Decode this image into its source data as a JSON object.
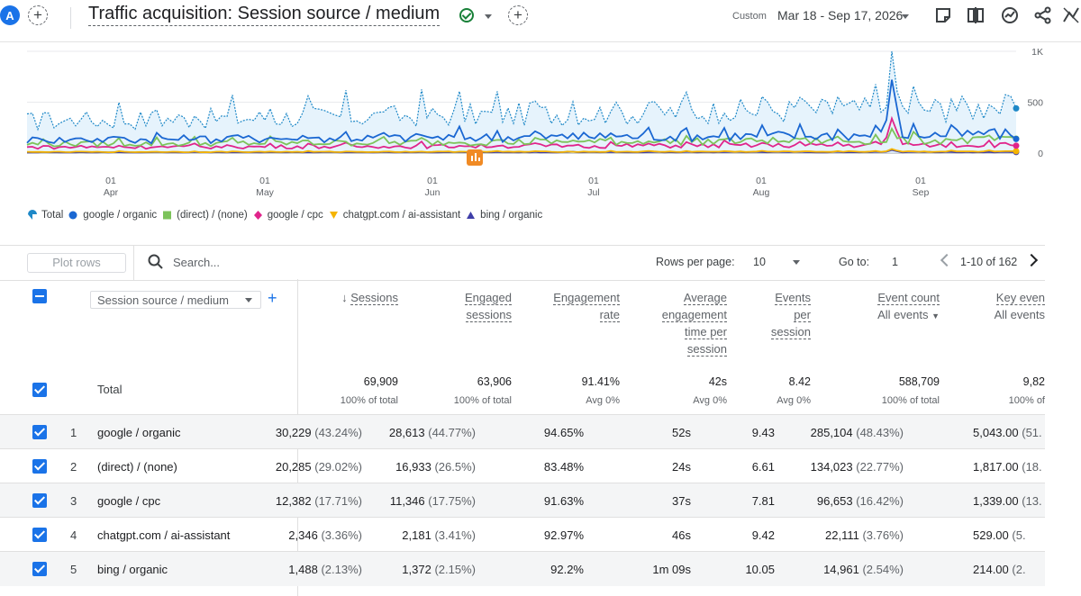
{
  "header": {
    "avatar_letter": "A",
    "title": "Traffic acquisition: Session source / medium",
    "date_label": "Custom",
    "date_range": "Mar 18 - Sep 17, 2026"
  },
  "colors": {
    "total": "#1e88c7",
    "google_organic": "#1a67d2",
    "direct": "#7cc35a",
    "google_cpc": "#e0248b",
    "chatgpt": "#f5b400",
    "bing": "#3f3ea8",
    "accent": "#1a73e8"
  },
  "chart_data": {
    "type": "line",
    "x_ticks": [
      {
        "day": "01",
        "month": "Apr"
      },
      {
        "day": "01",
        "month": "May"
      },
      {
        "day": "01",
        "month": "Jun"
      },
      {
        "day": "01",
        "month": "Jul"
      },
      {
        "day": "01",
        "month": "Aug"
      },
      {
        "day": "01",
        "month": "Sep"
      }
    ],
    "y_ticks": [
      "1K",
      "500",
      "0"
    ],
    "ylim": [
      0,
      1000
    ],
    "legend_position": "bottom-left",
    "series": [
      {
        "name": "Total",
        "key": "total",
        "approx_level": 390,
        "spike": 1000
      },
      {
        "name": "google / organic",
        "key": "google_organic",
        "approx_level": 160,
        "spike": 720
      },
      {
        "name": "(direct) / (none)",
        "key": "direct",
        "approx_level": 110,
        "spike": 240
      },
      {
        "name": "google / cpc",
        "key": "google_cpc",
        "approx_level": 70,
        "spike": 340
      },
      {
        "name": "chatgpt.com / ai-assistant",
        "key": "chatgpt",
        "approx_level": 13,
        "spike": 40
      },
      {
        "name": "bing / organic",
        "key": "bing",
        "approx_level": 8,
        "spike": 30
      }
    ]
  },
  "toolbar": {
    "plot_rows": "Plot rows",
    "search_placeholder": "Search...",
    "rows_per_page_label": "Rows per page:",
    "rows_per_page": "10",
    "goto_label": "Go to:",
    "goto_value": "1",
    "pagination": "1-10 of 162"
  },
  "table": {
    "dimension_label": "Session source / medium",
    "columns": [
      {
        "label_lines": [
          "Sessions"
        ],
        "sort_arrow": "↓",
        "sub": ""
      },
      {
        "label_lines": [
          "Engaged",
          "sessions"
        ],
        "sub": ""
      },
      {
        "label_lines": [
          "Engagement",
          "rate"
        ],
        "sub": ""
      },
      {
        "label_lines": [
          "Average",
          "engagement",
          "time per",
          "session"
        ],
        "sub": ""
      },
      {
        "label_lines": [
          "Events",
          "per",
          "session"
        ],
        "sub": ""
      },
      {
        "label_lines": [
          "Event count"
        ],
        "sub": "All events"
      },
      {
        "label_lines": [
          "Key even"
        ],
        "sub": "All events"
      }
    ],
    "total": {
      "label": "Total",
      "values": [
        "69,909",
        "63,906",
        "91.41%",
        "42s",
        "8.42",
        "588,709",
        "9,82"
      ],
      "subs": [
        "100% of total",
        "100% of total",
        "Avg 0%",
        "Avg 0%",
        "Avg 0%",
        "100% of total",
        "100% of"
      ]
    },
    "rows": [
      {
        "n": "1",
        "dim": "google / organic",
        "cells": [
          [
            "30,229",
            "(43.24%)"
          ],
          [
            "28,613",
            "(44.77%)"
          ],
          [
            "94.65%",
            ""
          ],
          [
            "52s",
            ""
          ],
          [
            "9.43",
            ""
          ],
          [
            "285,104",
            "(48.43%)"
          ],
          [
            "5,043.00",
            "(51."
          ]
        ]
      },
      {
        "n": "2",
        "dim": "(direct) / (none)",
        "cells": [
          [
            "20,285",
            "(29.02%)"
          ],
          [
            "16,933",
            "(26.5%)"
          ],
          [
            "83.48%",
            ""
          ],
          [
            "24s",
            ""
          ],
          [
            "6.61",
            ""
          ],
          [
            "134,023",
            "(22.77%)"
          ],
          [
            "1,817.00",
            "(18."
          ]
        ]
      },
      {
        "n": "3",
        "dim": "google / cpc",
        "cells": [
          [
            "12,382",
            "(17.71%)"
          ],
          [
            "11,346",
            "(17.75%)"
          ],
          [
            "91.63%",
            ""
          ],
          [
            "37s",
            ""
          ],
          [
            "7.81",
            ""
          ],
          [
            "96,653",
            "(16.42%)"
          ],
          [
            "1,339.00",
            "(13."
          ]
        ]
      },
      {
        "n": "4",
        "dim": "chatgpt.com / ai-assistant",
        "cells": [
          [
            "2,346",
            "(3.36%)"
          ],
          [
            "2,181",
            "(3.41%)"
          ],
          [
            "92.97%",
            ""
          ],
          [
            "46s",
            ""
          ],
          [
            "9.42",
            ""
          ],
          [
            "22,111",
            "(3.76%)"
          ],
          [
            "529.00",
            "(5."
          ]
        ]
      },
      {
        "n": "5",
        "dim": "bing / organic",
        "cells": [
          [
            "1,488",
            "(2.13%)"
          ],
          [
            "1,372",
            "(2.15%)"
          ],
          [
            "92.2%",
            ""
          ],
          [
            "1m 09s",
            ""
          ],
          [
            "10.05",
            ""
          ],
          [
            "14,961",
            "(2.54%)"
          ],
          [
            "214.00",
            "(2."
          ]
        ]
      }
    ]
  }
}
